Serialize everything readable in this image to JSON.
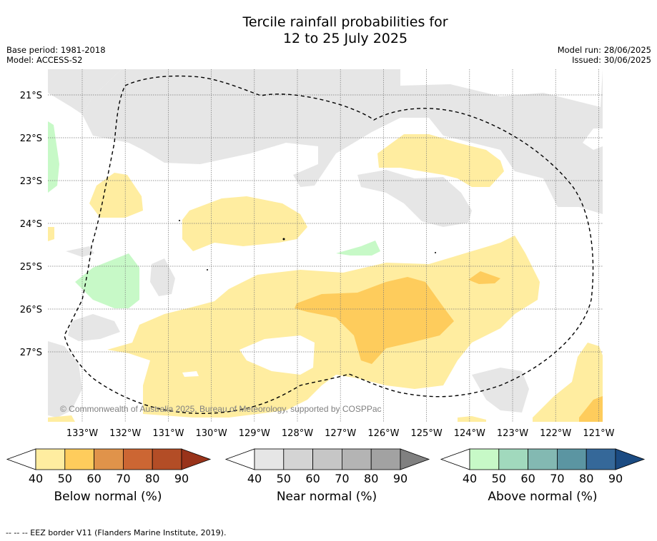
{
  "title": {
    "line1": "Tercile rainfall probabilities for",
    "line2": "12 to 25 July 2025"
  },
  "meta_left": {
    "base_period": "Base period: 1981-2018",
    "model": "Model: ACCESS-S2"
  },
  "meta_right": {
    "model_run": "Model run: 28/06/2025",
    "issued": "Issued: 30/06/2025"
  },
  "map": {
    "lat_labels": [
      "21°S",
      "22°S",
      "23°S",
      "24°S",
      "25°S",
      "26°S",
      "27°S"
    ],
    "lon_labels": [
      "133°W",
      "132°W",
      "131°W",
      "130°W",
      "129°W",
      "128°W",
      "127°W",
      "126°W",
      "125°W",
      "124°W",
      "123°W",
      "122°W",
      "121°W"
    ],
    "copyright": "© Commonwealth of Australia 2025, Bureau of Meteorology, supported by COSPPac"
  },
  "colorbars": [
    {
      "label": "Below normal (%)",
      "ticks": [
        "40",
        "50",
        "60",
        "70",
        "80",
        "90"
      ],
      "colors": [
        "#ffeda0",
        "#fecc5c",
        "#e0934a",
        "#cc6633",
        "#b34d26",
        "#99331a"
      ]
    },
    {
      "label": "Near normal (%)",
      "ticks": [
        "40",
        "50",
        "60",
        "70",
        "80",
        "90"
      ],
      "colors": [
        "#e6e6e6",
        "#d4d4d4",
        "#c6c6c6",
        "#b4b4b4",
        "#a2a2a2",
        "#808080"
      ]
    },
    {
      "label": "Above normal (%)",
      "ticks": [
        "40",
        "50",
        "60",
        "70",
        "80",
        "90"
      ],
      "colors": [
        "#c7f9c7",
        "#a1d9bd",
        "#83b9b2",
        "#5b95a2",
        "#356899",
        "#1b4b82"
      ]
    }
  ],
  "footer": "--  --  -- EEZ border V11 (Flanders Marine Institute, 2019)."
}
